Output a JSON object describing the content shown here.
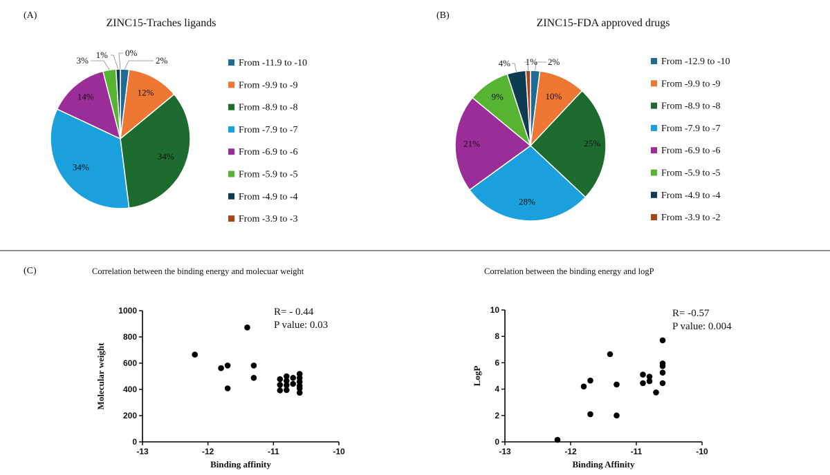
{
  "panels": {
    "a": "(A)",
    "b": "(B)",
    "c": "(C)"
  },
  "chart_data": [
    {
      "type": "pie",
      "title": "ZINC15-Traches ligands",
      "labels": [
        "From -11.9 to -10",
        "From -9.9 to -9",
        "From -8.9 to -8",
        "From -7.9 to -7",
        "From -6.9 to -6",
        "From -5.9 to -5",
        "From -4.9 to -4",
        "From -3.9 to -3"
      ],
      "values": [
        2,
        12,
        34,
        34,
        14,
        3,
        1,
        0
      ],
      "value_labels": [
        "2%",
        "12%",
        "34%",
        "34%",
        "14%",
        "3%",
        "1%",
        "0%"
      ],
      "colors": [
        "#1f6b94",
        "#ee7733",
        "#1e6b30",
        "#1aa0dc",
        "#9b2d98",
        "#56b432",
        "#0c3b52",
        "#a8431b"
      ],
      "legend": "right"
    },
    {
      "type": "pie",
      "title": "ZINC15-FDA approved drugs",
      "labels": [
        "From -12.9 to -10",
        "From -9.9 to -9",
        "From -8.9 to -8",
        "From -7.9 to -7",
        "From -6.9 to -6",
        "From -5.9 to -5",
        "From -4.9 to -4",
        "From -3.9 to -2"
      ],
      "values": [
        2,
        10,
        25,
        28,
        21,
        9,
        4,
        1
      ],
      "value_labels": [
        "2%",
        "10%",
        "25%",
        "28%",
        "21%",
        "9%",
        "4%",
        "1%"
      ],
      "colors": [
        "#1f6b94",
        "#ee7733",
        "#1e6b30",
        "#1aa0dc",
        "#9b2d98",
        "#56b432",
        "#0c3b52",
        "#a8431b"
      ],
      "legend": "right"
    },
    {
      "type": "scatter",
      "title": "Correlation between the binding energy and molecuar weight",
      "xlabel": "Binding affinity",
      "ylabel": "Molecular weight",
      "xlim": [
        -13,
        -10
      ],
      "ylim": [
        0,
        1000
      ],
      "xticks": [
        -13,
        -12,
        -11,
        -10
      ],
      "yticks": [
        0,
        200,
        400,
        600,
        800,
        1000
      ],
      "x": [
        -12.2,
        -11.8,
        -11.7,
        -11.7,
        -11.4,
        -11.3,
        -11.3,
        -10.9,
        -10.9,
        -10.9,
        -10.8,
        -10.8,
        -10.8,
        -10.8,
        -10.7,
        -10.7,
        -10.6,
        -10.6,
        -10.6,
        -10.6,
        -10.6,
        -10.6
      ],
      "y": [
        665,
        562,
        582,
        408,
        872,
        582,
        488,
        478,
        435,
        392,
        500,
        465,
        432,
        395,
        488,
        442,
        518,
        488,
        458,
        428,
        408,
        375
      ],
      "annotations": [
        "R= - 0.44",
        "P value: 0.03"
      ],
      "color": "#000000"
    },
    {
      "type": "scatter",
      "title": "Correlation between the binding energy and logP",
      "xlabel": "Binding Affinity",
      "ylabel": "LogP",
      "xlim": [
        -13,
        -10
      ],
      "ylim": [
        0,
        10
      ],
      "xticks": [
        -13,
        -12,
        -11,
        -10
      ],
      "yticks": [
        0,
        2,
        4,
        6,
        8,
        10
      ],
      "x": [
        -12.2,
        -11.8,
        -11.7,
        -11.7,
        -11.4,
        -11.3,
        -11.3,
        -10.9,
        -10.9,
        -10.8,
        -10.8,
        -10.7,
        -10.6,
        -10.6,
        -10.6,
        -10.6,
        -10.6
      ],
      "y": [
        0.15,
        4.2,
        4.65,
        2.1,
        6.65,
        4.35,
        2.0,
        5.1,
        4.45,
        4.95,
        4.6,
        3.75,
        7.7,
        5.95,
        5.75,
        5.25,
        4.45
      ],
      "annotations": [
        "R= -0.57",
        "P value: 0.004"
      ],
      "color": "#000000"
    }
  ]
}
